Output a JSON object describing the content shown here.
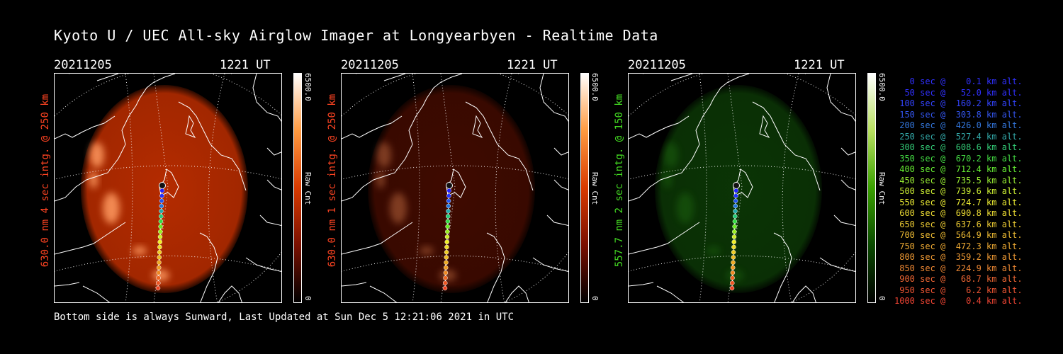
{
  "title": "Kyoto U / UEC All-sky Airglow Imager at Longyearbyen - Realtime Data",
  "footer": "Bottom side is always Sunward, Last Updated at Sun Dec  5 12:21:06 2021 in UTC",
  "panels": [
    {
      "date": "20211205",
      "ut": "1221 UT",
      "label": "630.0 nm 4 sec intg. @ 250 km",
      "label_color": "#ff4422",
      "cb_max": "6500.0",
      "cb_min": "0",
      "cb_unit": "Raw Cnt",
      "cb_gradient": "linear-gradient(to top,#000,#7a1000,#d83a00,#ff9a40,#fff)",
      "glow": "#c83000",
      "glow_opacity": 0.9
    },
    {
      "date": "20211205",
      "ut": "1221 UT",
      "label": "630.0 nm 1 sec intg. @ 250 km",
      "label_color": "#ff4422",
      "cb_max": "6500.0",
      "cb_min": "0",
      "cb_unit": "Raw Cnt",
      "cb_gradient": "linear-gradient(to top,#000,#7a1000,#d83a00,#ff9a40,#fff)",
      "glow": "#4a0c00",
      "glow_opacity": 0.85
    },
    {
      "date": "20211205",
      "ut": "1221 UT",
      "label": "557.7 nm 2 sec intg. @ 150 km",
      "label_color": "#44dd22",
      "cb_max": "6500.0",
      "cb_min": "0",
      "cb_unit": "Raw Cnt",
      "cb_gradient": "linear-gradient(to top,#000,#0a4a00,#3aa000,#b8e060,#fff)",
      "glow": "#0c3a06",
      "glow_opacity": 0.9
    }
  ],
  "legend": [
    {
      "text": "   0 sec @    0.1 km alt.",
      "color": "#3030ff"
    },
    {
      "text": "  50 sec @   52.0 km alt.",
      "color": "#3030ff"
    },
    {
      "text": " 100 sec @  160.2 km alt.",
      "color": "#3344ff"
    },
    {
      "text": " 150 sec @  303.8 km alt.",
      "color": "#3355ee"
    },
    {
      "text": " 200 sec @  426.0 km alt.",
      "color": "#3377dd"
    },
    {
      "text": " 250 sec @  527.4 km alt.",
      "color": "#33aaaa"
    },
    {
      "text": " 300 sec @  608.6 km alt.",
      "color": "#33cc77"
    },
    {
      "text": " 350 sec @  670.2 km alt.",
      "color": "#44dd44"
    },
    {
      "text": " 400 sec @  712.4 km alt.",
      "color": "#66ee33"
    },
    {
      "text": " 450 sec @  735.5 km alt.",
      "color": "#99ee33"
    },
    {
      "text": " 500 sec @  739.6 km alt.",
      "color": "#ccee33"
    },
    {
      "text": " 550 sec @  724.7 km alt.",
      "color": "#eeee33"
    },
    {
      "text": " 600 sec @  690.8 km alt.",
      "color": "#eedd33"
    },
    {
      "text": " 650 sec @  637.6 km alt.",
      "color": "#eecc33"
    },
    {
      "text": " 700 sec @  564.9 km alt.",
      "color": "#eebb33"
    },
    {
      "text": " 750 sec @  472.3 km alt.",
      "color": "#eeaa33"
    },
    {
      "text": " 800 sec @  359.2 km alt.",
      "color": "#ee9933"
    },
    {
      "text": " 850 sec @  224.9 km alt.",
      "color": "#ee8833"
    },
    {
      "text": " 900 sec @   68.7 km alt.",
      "color": "#ee6633"
    },
    {
      "text": " 950 sec @    6.2 km alt.",
      "color": "#ee5533"
    },
    {
      "text": "1000 sec @    0.4 km alt.",
      "color": "#ee4433"
    }
  ]
}
